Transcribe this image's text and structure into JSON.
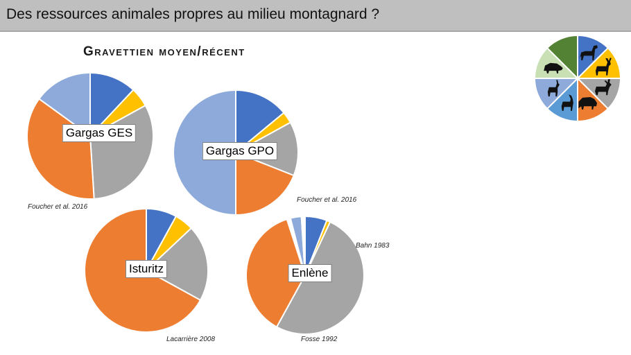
{
  "header": {
    "title": "Des ressources animales propres au milieu montagnard ?"
  },
  "subtitle": "Gravettien moyen/récent",
  "colors": {
    "horse": "#4472c4",
    "reindeer": "#ffc000",
    "aurochs_bison": "#a5a5a5",
    "ibex": "#ed7d31",
    "red_deer": "#8eaadb"
  },
  "legend_wheel": {
    "segments": [
      {
        "color": "#4472c4",
        "icon": "horse-icon"
      },
      {
        "color": "#ffc000",
        "icon": "red-deer-icon"
      },
      {
        "color": "#a5a5a5",
        "icon": "reindeer-icon"
      },
      {
        "color": "#ed7d31",
        "icon": "bison-icon"
      },
      {
        "color": "#5b9bd5",
        "icon": "ibex-icon"
      },
      {
        "color": "#8eaadb",
        "icon": "roe-deer-icon"
      },
      {
        "color": "#c9dfb4",
        "icon": "boar-icon"
      },
      {
        "color": "#548235",
        "icon": ""
      }
    ]
  },
  "chart_data": [
    {
      "type": "pie",
      "label": "Gargas GES",
      "source": "Foucher et al. 2016",
      "slices": [
        {
          "color": "#4472c4",
          "value": 12
        },
        {
          "color": "#ffc000",
          "value": 5
        },
        {
          "color": "#a5a5a5",
          "value": 32
        },
        {
          "color": "#ed7d31",
          "value": 36
        },
        {
          "color": "#8eaadb",
          "value": 15
        }
      ]
    },
    {
      "type": "pie",
      "label": "Gargas GPO",
      "source": "Foucher et al. 2016",
      "slices": [
        {
          "color": "#4472c4",
          "value": 14
        },
        {
          "color": "#ffc000",
          "value": 3
        },
        {
          "color": "#a5a5a5",
          "value": 14
        },
        {
          "color": "#ed7d31",
          "value": 19
        },
        {
          "color": "#8eaadb",
          "value": 50
        }
      ]
    },
    {
      "type": "pie",
      "label": "Isturitz",
      "source": "Lacarrière 2008",
      "slices": [
        {
          "color": "#4472c4",
          "value": 8
        },
        {
          "color": "#ffc000",
          "value": 5
        },
        {
          "color": "#a5a5a5",
          "value": 20
        },
        {
          "color": "#ed7d31",
          "value": 67
        }
      ]
    },
    {
      "type": "pie",
      "label": "Enlène",
      "source": "Fosse 1992",
      "source2": "Bahn 1983",
      "slices": [
        {
          "color": "#4472c4",
          "value": 6
        },
        {
          "color": "#ffc000",
          "value": 1
        },
        {
          "color": "#a5a5a5",
          "value": 51
        },
        {
          "color": "#ed7d31",
          "value": 37
        },
        {
          "color": "#ffffff",
          "value": 1
        },
        {
          "color": "#8eaadb",
          "value": 3
        },
        {
          "color": "#ffffff",
          "value": 1
        }
      ]
    }
  ]
}
